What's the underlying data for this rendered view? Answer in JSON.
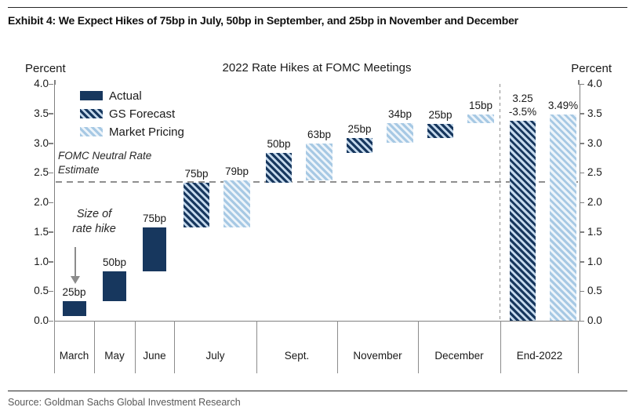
{
  "exhibit": {
    "title": "Exhibit 4: We Expect Hikes of 75bp in July, 50bp in September, and 25bp in November and December"
  },
  "source": "Source: Goldman Sachs Global Investment Research",
  "chart_data": {
    "type": "bar",
    "variant": "waterfall",
    "title": "2022 Rate Hikes at FOMC Meetings",
    "y_axis": {
      "label_left": "Percent",
      "label_right": "Percent",
      "min": 0.0,
      "max": 4.0,
      "tick_step": 0.5,
      "ticks": [
        "4.0",
        "3.5",
        "3.0",
        "2.5",
        "2.0",
        "1.5",
        "1.0",
        "0.5",
        "0.0"
      ]
    },
    "grid": "off",
    "legend_position": "top-left-inside",
    "legend": [
      {
        "name": "Actual",
        "style": "solid"
      },
      {
        "name": "GS Forecast",
        "style": "hatch-dark"
      },
      {
        "name": "Market Pricing",
        "style": "hatch-light"
      }
    ],
    "colors": {
      "navy": "#17375E",
      "hatch_dark_bg": "#C5D9EC",
      "light_blue": "#A7C9E4",
      "hatch_light_bg": "#EDF4FA"
    },
    "neutral_rate_line": {
      "label": "FOMC Neutral Rate\nEstimate",
      "value": 2.35,
      "style": "dashed-gray"
    },
    "annotation": {
      "text": "Size of\nrate hike",
      "arrow": "down",
      "points_to": "March bar"
    },
    "categories": [
      {
        "name": "March",
        "bars": [
          {
            "series": "Actual",
            "label": "25bp",
            "from": 0.08,
            "to": 0.33
          }
        ]
      },
      {
        "name": "May",
        "bars": [
          {
            "series": "Actual",
            "label": "50bp",
            "from": 0.33,
            "to": 0.83
          }
        ]
      },
      {
        "name": "June",
        "bars": [
          {
            "series": "Actual",
            "label": "75bp",
            "from": 0.83,
            "to": 1.58
          }
        ]
      },
      {
        "name": "July",
        "bars": [
          {
            "series": "GS Forecast",
            "label": "75bp",
            "from": 1.58,
            "to": 2.33
          },
          {
            "series": "Market Pricing",
            "label": "79bp",
            "from": 1.58,
            "to": 2.37
          }
        ]
      },
      {
        "name": "Sept.",
        "bars": [
          {
            "series": "GS Forecast",
            "label": "50bp",
            "from": 2.33,
            "to": 2.83
          },
          {
            "series": "Market Pricing",
            "label": "63bp",
            "from": 2.37,
            "to": 3.0
          }
        ]
      },
      {
        "name": "November",
        "bars": [
          {
            "series": "GS Forecast",
            "label": "25bp",
            "from": 2.83,
            "to": 3.08
          },
          {
            "series": "Market Pricing",
            "label": "34bp",
            "from": 3.0,
            "to": 3.34
          }
        ]
      },
      {
        "name": "December",
        "bars": [
          {
            "series": "GS Forecast",
            "label": "25bp",
            "from": 3.08,
            "to": 3.33
          },
          {
            "series": "Market Pricing",
            "label": "15bp",
            "from": 3.34,
            "to": 3.49
          }
        ]
      },
      {
        "name": "End-2022",
        "separator_before": "dashed",
        "bars": [
          {
            "series": "GS Forecast",
            "label": "3.25\n-3.5%",
            "from": 0.0,
            "to": 3.38
          },
          {
            "series": "Market Pricing",
            "label": "3.49%",
            "from": 0.0,
            "to": 3.49
          }
        ]
      }
    ]
  }
}
